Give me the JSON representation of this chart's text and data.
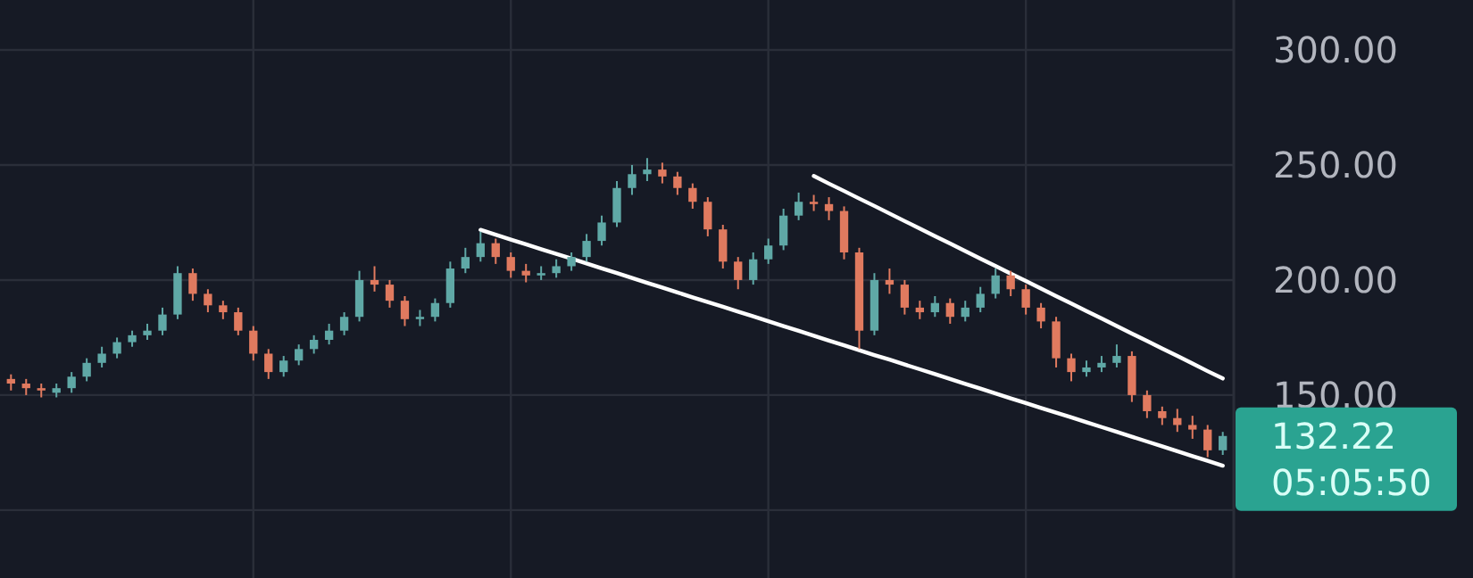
{
  "chart_data": {
    "type": "candlestick",
    "categories": [
      null,
      null,
      null,
      null,
      null,
      null,
      null,
      null,
      null,
      null,
      null,
      null,
      null,
      null,
      null,
      null,
      null,
      null,
      null,
      null,
      null,
      null,
      null,
      null,
      null,
      null,
      null,
      null,
      null,
      null,
      null,
      null,
      null,
      null,
      null,
      null,
      null,
      null,
      null,
      null,
      null,
      null,
      null,
      null,
      null,
      null,
      null,
      null,
      null,
      null,
      null,
      null,
      null,
      null,
      null,
      null,
      null,
      null,
      null,
      null,
      null,
      null,
      null,
      null,
      null,
      null,
      null,
      null,
      null,
      null,
      null,
      null,
      null,
      null,
      null,
      null,
      null,
      null,
      null,
      null,
      null
    ],
    "ohlc": [
      [
        157,
        159,
        152,
        155
      ],
      [
        155,
        157,
        150,
        153
      ],
      [
        153,
        155,
        149,
        152
      ],
      [
        151,
        155,
        149,
        153
      ],
      [
        153,
        160,
        151,
        158
      ],
      [
        158,
        166,
        156,
        164
      ],
      [
        164,
        171,
        162,
        168
      ],
      [
        168,
        175,
        166,
        173
      ],
      [
        173,
        178,
        171,
        176
      ],
      [
        176,
        181,
        174,
        178
      ],
      [
        178,
        188,
        176,
        185
      ],
      [
        185,
        206,
        183,
        203
      ],
      [
        203,
        205,
        191,
        194
      ],
      [
        194,
        196,
        186,
        189
      ],
      [
        189,
        191,
        183,
        186
      ],
      [
        186,
        188,
        176,
        178
      ],
      [
        178,
        180,
        165,
        168
      ],
      [
        168,
        170,
        157,
        160
      ],
      [
        160,
        167,
        158,
        165
      ],
      [
        165,
        172,
        163,
        170
      ],
      [
        170,
        176,
        168,
        174
      ],
      [
        174,
        181,
        172,
        178
      ],
      [
        178,
        186,
        176,
        184
      ],
      [
        184,
        204,
        182,
        200
      ],
      [
        200,
        206,
        195,
        198
      ],
      [
        198,
        200,
        188,
        191
      ],
      [
        191,
        193,
        180,
        183
      ],
      [
        183,
        187,
        180,
        184
      ],
      [
        184,
        192,
        182,
        190
      ],
      [
        190,
        208,
        188,
        205
      ],
      [
        205,
        214,
        203,
        210
      ],
      [
        210,
        221,
        208,
        216
      ],
      [
        216,
        218,
        207,
        210
      ],
      [
        210,
        212,
        201,
        204
      ],
      [
        204,
        207,
        199,
        202
      ],
      [
        202,
        206,
        200,
        203
      ],
      [
        203,
        209,
        201,
        206
      ],
      [
        206,
        212,
        204,
        210
      ],
      [
        210,
        220,
        208,
        217
      ],
      [
        217,
        228,
        215,
        225
      ],
      [
        225,
        243,
        223,
        240
      ],
      [
        240,
        250,
        237,
        246
      ],
      [
        246,
        253,
        243,
        248
      ],
      [
        248,
        251,
        242,
        245
      ],
      [
        245,
        247,
        237,
        240
      ],
      [
        240,
        242,
        231,
        234
      ],
      [
        234,
        236,
        219,
        222
      ],
      [
        222,
        224,
        205,
        208
      ],
      [
        208,
        210,
        196,
        200
      ],
      [
        200,
        212,
        198,
        209
      ],
      [
        209,
        218,
        207,
        215
      ],
      [
        215,
        231,
        213,
        228
      ],
      [
        228,
        238,
        226,
        234
      ],
      [
        234,
        237,
        230,
        233
      ],
      [
        233,
        236,
        226,
        230
      ],
      [
        230,
        232,
        209,
        212
      ],
      [
        212,
        214,
        170,
        178
      ],
      [
        178,
        203,
        176,
        200
      ],
      [
        200,
        205,
        194,
        198
      ],
      [
        198,
        200,
        185,
        188
      ],
      [
        188,
        191,
        183,
        186
      ],
      [
        186,
        193,
        184,
        190
      ],
      [
        190,
        192,
        181,
        184
      ],
      [
        184,
        191,
        182,
        188
      ],
      [
        188,
        197,
        186,
        194
      ],
      [
        194,
        205,
        192,
        202
      ],
      [
        202,
        204,
        193,
        196
      ],
      [
        196,
        198,
        185,
        188
      ],
      [
        188,
        190,
        179,
        182
      ],
      [
        182,
        184,
        162,
        166
      ],
      [
        166,
        168,
        156,
        160
      ],
      [
        160,
        165,
        158,
        162
      ],
      [
        162,
        167,
        160,
        164
      ],
      [
        164,
        172,
        162,
        167
      ],
      [
        167,
        169,
        147,
        150
      ],
      [
        150,
        152,
        140,
        143
      ],
      [
        143,
        145,
        137,
        140
      ],
      [
        140,
        144,
        134,
        137
      ],
      [
        137,
        141,
        131,
        135
      ],
      [
        135,
        137,
        123,
        126
      ],
      [
        126,
        134,
        124,
        132.22
      ]
    ],
    "colors": [
      "#e07a5f",
      "#e07a5f",
      "#e07a5f",
      "#5fa8a6",
      "#5fa8a6",
      "#5fa8a6",
      "#5fa8a6",
      "#5fa8a6",
      "#5fa8a6",
      "#5fa8a6",
      "#5fa8a6",
      "#5fa8a6",
      "#e07a5f",
      "#e07a5f",
      "#e07a5f",
      "#e07a5f",
      "#e07a5f",
      "#e07a5f",
      "#5fa8a6",
      "#5fa8a6",
      "#5fa8a6",
      "#5fa8a6",
      "#5fa8a6",
      "#5fa8a6",
      "#e07a5f",
      "#e07a5f",
      "#e07a5f",
      "#5fa8a6",
      "#5fa8a6",
      "#5fa8a6",
      "#5fa8a6",
      "#5fa8a6",
      "#e07a5f",
      "#e07a5f",
      "#e07a5f",
      "#5fa8a6",
      "#5fa8a6",
      "#5fa8a6",
      "#5fa8a6",
      "#5fa8a6",
      "#5fa8a6",
      "#5fa8a6",
      "#5fa8a6",
      "#e07a5f",
      "#e07a5f",
      "#e07a5f",
      "#e07a5f",
      "#e07a5f",
      "#e07a5f",
      "#5fa8a6",
      "#5fa8a6",
      "#5fa8a6",
      "#5fa8a6",
      "#e07a5f",
      "#e07a5f",
      "#e07a5f",
      "#e07a5f",
      "#5fa8a6",
      "#e07a5f",
      "#e07a5f",
      "#e07a5f",
      "#5fa8a6",
      "#e07a5f",
      "#5fa8a6",
      "#5fa8a6",
      "#5fa8a6",
      "#e07a5f",
      "#e07a5f",
      "#e07a5f",
      "#e07a5f",
      "#e07a5f",
      "#5fa8a6",
      "#5fa8a6",
      "#5fa8a6",
      "#e07a5f",
      "#e07a5f",
      "#e07a5f",
      "#e07a5f",
      "#e07a5f",
      "#e07a5f",
      "#5fa8a6"
    ],
    "series": [
      {
        "type": "line",
        "color": "#ffffff",
        "values": [
          null,
          null,
          null,
          null,
          null,
          null,
          null,
          null,
          null,
          null,
          null,
          null,
          null,
          null,
          null,
          null,
          null,
          null,
          null,
          null,
          null,
          null,
          null,
          null,
          null,
          null,
          null,
          null,
          null,
          null,
          null,
          null,
          null,
          null,
          null,
          null,
          null,
          null,
          null,
          null,
          null,
          null,
          null,
          null,
          null,
          null,
          null,
          null,
          null,
          null,
          null,
          null,
          null,
          245.2,
          241.9,
          238.7,
          235.4,
          232.2,
          228.9,
          225.6,
          222.4,
          219.1,
          215.9,
          212.6,
          209.3,
          206.1,
          202.8,
          199.6,
          196.3,
          193.0,
          189.8,
          186.5,
          183.3,
          180.0,
          176.7,
          173.5,
          170.2,
          167.0,
          163.7,
          160.4,
          157.2
        ]
      },
      {
        "type": "line",
        "color": "#ffffff",
        "values": [
          null,
          null,
          null,
          null,
          null,
          null,
          null,
          null,
          null,
          null,
          null,
          null,
          null,
          null,
          null,
          null,
          null,
          null,
          null,
          null,
          null,
          null,
          null,
          null,
          null,
          null,
          null,
          null,
          null,
          null,
          null,
          221.8,
          219.7,
          217.6,
          215.5,
          213.4,
          211.4,
          209.3,
          207.2,
          205.1,
          203.0,
          200.9,
          198.8,
          196.7,
          194.6,
          192.5,
          190.4,
          188.4,
          186.3,
          184.2,
          182.1,
          180.0,
          177.9,
          175.8,
          173.7,
          171.6,
          169.5,
          167.4,
          165.4,
          163.3,
          161.2,
          159.1,
          157.0,
          154.9,
          152.8,
          150.7,
          148.6,
          146.5,
          144.4,
          142.4,
          140.3,
          138.2,
          136.1,
          134.0,
          131.9,
          129.8,
          127.7,
          125.6,
          123.5,
          121.4,
          119.3
        ]
      }
    ],
    "ylim": [
      70.5,
      321.7
    ],
    "yticks": [
      {
        "value": 100,
        "label": null
      },
      {
        "value": 150,
        "label": "150.00"
      },
      {
        "value": 200,
        "label": "200.00"
      },
      {
        "value": 250,
        "label": "250.00"
      },
      {
        "value": 300,
        "label": "300.00"
      }
    ],
    "grid": true,
    "tick_labels": "y",
    "annotations": [
      "132.22",
      "05:05:50"
    ]
  }
}
